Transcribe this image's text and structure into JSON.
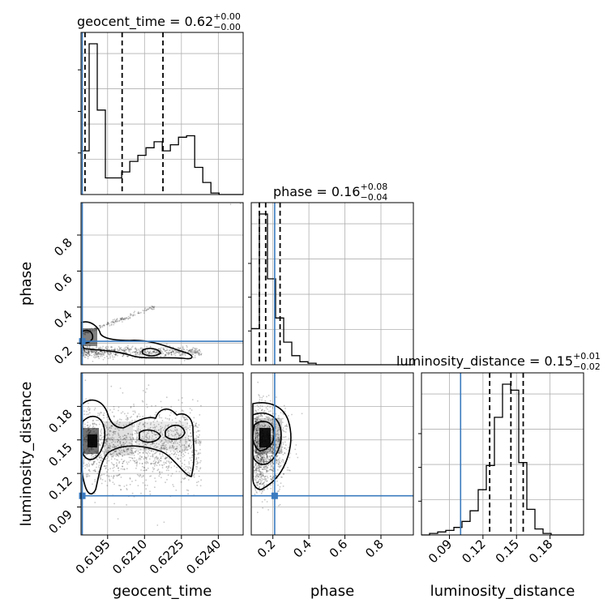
{
  "chart_data": {
    "type": "corner",
    "parameters": [
      "geocent_time",
      "phase",
      "luminosity_distance"
    ],
    "panel_titles": [
      {
        "param": "geocent_time",
        "prefix": "geocent_time = 0.62",
        "sup": "+0.00",
        "sub": "−0.00"
      },
      {
        "param": "phase",
        "prefix": "phase = 0.16",
        "sup": "+0.08",
        "sub": "−0.04"
      },
      {
        "param": "luminosity_distance",
        "prefix": "luminosity_distance = 0.15",
        "sup": "+0.01",
        "sub": "−0.02"
      }
    ],
    "injection": {
      "geocent_time": 0.61847,
      "phase": 0.21,
      "luminosity_distance": 0.1
    },
    "ranges": {
      "geocent_time": [
        0.61842,
        0.62501
      ],
      "phase": [
        0.08,
        0.98
      ],
      "luminosity_distance": [
        0.065,
        0.21
      ]
    },
    "ticks": {
      "geocent_time": [
        "0.6195",
        "0.6210",
        "0.6225",
        "0.6240"
      ],
      "phase": [
        "0.2",
        "0.4",
        "0.6",
        "0.8"
      ],
      "luminosity_distance": [
        "0.09",
        "0.12",
        "0.15",
        "0.18"
      ]
    },
    "quantiles": {
      "geocent_time": [
        0.61858,
        0.62009,
        0.62175
      ],
      "phase": [
        0.125,
        0.16,
        0.24
      ],
      "luminosity_distance": [
        0.126,
        0.145,
        0.156
      ]
    },
    "histograms": {
      "geocent_time": {
        "edges_start": 0.61842,
        "bin_width": 0.00033,
        "counts": [
          0.29,
          1.0,
          0.56,
          0.11,
          0.11,
          0.15,
          0.22,
          0.26,
          0.31,
          0.35,
          0.29,
          0.33,
          0.38,
          0.39,
          0.18,
          0.08,
          0.01,
          0.0,
          0.0,
          0.0
        ]
      },
      "phase": {
        "edges_start": 0.08,
        "bin_width": 0.045,
        "counts": [
          0.24,
          1.0,
          0.57,
          0.31,
          0.15,
          0.06,
          0.02,
          0.01,
          0.0,
          0.0,
          0.0,
          0.0,
          0.0,
          0.0,
          0.0,
          0.0,
          0.0,
          0.0,
          0.0,
          0.0
        ]
      },
      "luminosity_distance": {
        "edges_start": 0.065,
        "bin_width": 0.00725,
        "counts": [
          0.0,
          0.01,
          0.02,
          0.03,
          0.05,
          0.09,
          0.16,
          0.3,
          0.46,
          0.78,
          1.0,
          0.96,
          0.48,
          0.17,
          0.04,
          0.01,
          0.0,
          0.0,
          0.0,
          0.0
        ]
      }
    },
    "grid": true,
    "injection_color": "#3b7bbf",
    "hist_color": "#000000",
    "point_color": "#000000"
  }
}
